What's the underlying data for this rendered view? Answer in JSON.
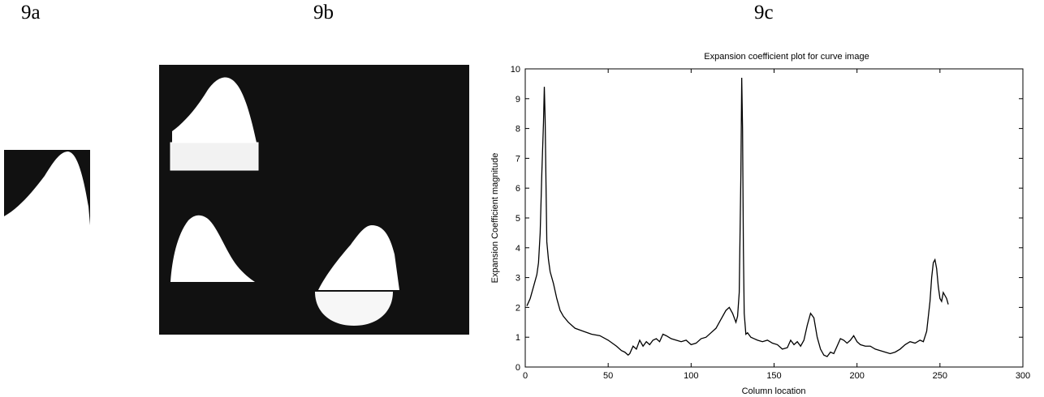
{
  "panels": {
    "a_label": "9a",
    "b_label": "9b",
    "c_label": "9c"
  },
  "chart_data": {
    "type": "line",
    "title": "Expansion coefficient plot for curve image",
    "xlabel": "Column location",
    "ylabel": "Expansion Coefficient magnitude",
    "xlim": [
      0,
      300
    ],
    "ylim": [
      0,
      10
    ],
    "xticks": [
      "0",
      "50",
      "100",
      "150",
      "200",
      "250",
      "300"
    ],
    "yticks": [
      "0",
      "1",
      "2",
      "3",
      "4",
      "5",
      "6",
      "7",
      "8",
      "9",
      "10"
    ],
    "grid": false,
    "series": [
      {
        "x": [
          1,
          3,
          5,
          7,
          8,
          9,
          10,
          11,
          11.5,
          12,
          12.5,
          13,
          14,
          15,
          17,
          19,
          21,
          23,
          26,
          30,
          35,
          40,
          45,
          50,
          55,
          58,
          60,
          62,
          63,
          65,
          67,
          69,
          71,
          73,
          75,
          77,
          79,
          81,
          83,
          85,
          88,
          91,
          94,
          97,
          100,
          103,
          106,
          109,
          112,
          115,
          118,
          121,
          123,
          125,
          127,
          128,
          129,
          130,
          130.5,
          131,
          131.5,
          132,
          133,
          134,
          136,
          138,
          140,
          143,
          146,
          149,
          152,
          155,
          158,
          160,
          162,
          164,
          166,
          168,
          170,
          172,
          174,
          176,
          178,
          180,
          182,
          184,
          186,
          188,
          190,
          192,
          194,
          196,
          198,
          200,
          202,
          205,
          208,
          211,
          214,
          217,
          220,
          223,
          226,
          229,
          232,
          235,
          238,
          240,
          242,
          244,
          245,
          246,
          247,
          248,
          249,
          250,
          251,
          252,
          253,
          254,
          255
        ],
        "y": [
          2.05,
          2.3,
          2.7,
          3.1,
          3.5,
          4.5,
          6.5,
          8.2,
          9.4,
          8.3,
          6.2,
          4.2,
          3.6,
          3.2,
          2.8,
          2.3,
          1.9,
          1.7,
          1.5,
          1.3,
          1.2,
          1.1,
          1.05,
          0.9,
          0.7,
          0.55,
          0.5,
          0.4,
          0.45,
          0.7,
          0.6,
          0.9,
          0.7,
          0.85,
          0.75,
          0.9,
          0.95,
          0.85,
          1.1,
          1.05,
          0.95,
          0.9,
          0.85,
          0.9,
          0.75,
          0.8,
          0.95,
          1.0,
          1.15,
          1.3,
          1.6,
          1.9,
          2.0,
          1.8,
          1.5,
          1.7,
          2.5,
          6.5,
          9.7,
          8.0,
          4.0,
          1.8,
          1.1,
          1.15,
          1.0,
          0.95,
          0.9,
          0.85,
          0.9,
          0.8,
          0.75,
          0.6,
          0.65,
          0.9,
          0.75,
          0.85,
          0.7,
          0.9,
          1.4,
          1.8,
          1.65,
          1.0,
          0.6,
          0.4,
          0.35,
          0.5,
          0.45,
          0.7,
          0.95,
          0.9,
          0.8,
          0.9,
          1.05,
          0.85,
          0.75,
          0.7,
          0.7,
          0.6,
          0.55,
          0.5,
          0.45,
          0.5,
          0.6,
          0.75,
          0.85,
          0.8,
          0.9,
          0.85,
          1.2,
          2.2,
          3.0,
          3.5,
          3.6,
          3.3,
          2.7,
          2.3,
          2.2,
          2.5,
          2.4,
          2.3,
          2.1
        ]
      }
    ]
  }
}
